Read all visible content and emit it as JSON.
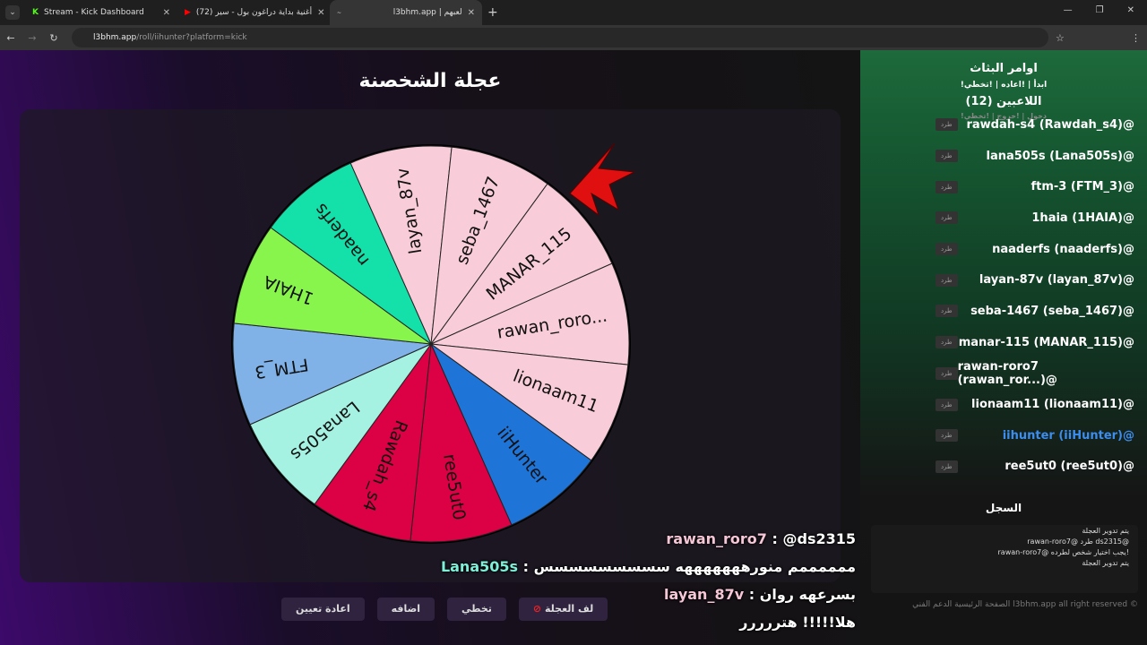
{
  "browser": {
    "tabs": [
      {
        "title": "Stream - Kick Dashboard",
        "icon": "kick-icon"
      },
      {
        "title": "(72) أغنية بداية دراغون بول - سير",
        "icon": "youtube-icon"
      },
      {
        "title": "l3bhm.app | لعبهم",
        "icon": "site-icon"
      }
    ],
    "url_host": "l3bhm.app",
    "url_path": "/roll/iihunter?platform=kick"
  },
  "page": {
    "title": "عجلة الشخصنة",
    "buttons": {
      "spin": "لف العجلة",
      "skip": "تخطي",
      "add": "اضافه",
      "reset": "اعادة تعيين"
    }
  },
  "wheel": {
    "segments": [
      {
        "label": "layan_87v",
        "color": "#f8cdd9"
      },
      {
        "label": "seba_1467",
        "color": "#f8cdd9"
      },
      {
        "label": "MANAR_115",
        "color": "#f8cdd9"
      },
      {
        "label": "rawan_roro...",
        "color": "#f8cdd9"
      },
      {
        "label": "lionaam11",
        "color": "#f8cdd9"
      },
      {
        "label": "iiHunter",
        "color": "#1f74d8"
      },
      {
        "label": "ree5ut0",
        "color": "#dc0044"
      },
      {
        "label": "Rawdah_s4",
        "color": "#dc0044"
      },
      {
        "label": "Lana505s",
        "color": "#a6f2e2"
      },
      {
        "label": "FTM_3",
        "color": "#80b2e8"
      },
      {
        "label": "1HAIA",
        "color": "#88f54c"
      },
      {
        "label": "naaderfs",
        "color": "#14e0aa"
      }
    ]
  },
  "sidebar": {
    "commands_title": "اوامر البثاث",
    "commands": "!ابدأ | !اعاده | !تخطي",
    "players_title": "اللاعبين (12)",
    "player_cmds": "!دخول | !خروج | !تخطي",
    "kick_label": "طرد",
    "players": [
      {
        "name": "rawdah-s4 (Rawdah_s4)@"
      },
      {
        "name": "lana505s (Lana505s)@"
      },
      {
        "name": "ftm-3 (FTM_3)@"
      },
      {
        "name": "1haia (1HAIA)@"
      },
      {
        "name": "naaderfs (naaderfs)@"
      },
      {
        "name": "layan-87v (layan_87v)@"
      },
      {
        "name": "seba-1467 (seba_1467)@"
      },
      {
        "name": "manar-115 (MANAR_115)@"
      },
      {
        "name": "rawan-roro7 (rawan_ror...)@"
      },
      {
        "name": "lionaam11 (lionaam11)@"
      },
      {
        "name": "iihunter (iiHunter)@",
        "highlight": true
      },
      {
        "name": "ree5ut0 (ree5ut0)@"
      }
    ],
    "log_title": "السجل",
    "log": [
      "يتم تدوير العجلة",
      "rawan-roro7@ طرد ds2315@",
      "rawan-roro7@ يجب اختيار شخص لطرده!",
      "يتم تدوير العجلة"
    ],
    "footer": "الصفحة الرئيسية   الدعم الفني   l3bhm.app all right reserved ©"
  },
  "chat": [
    {
      "user": "rawan_roro7",
      "msg": "@ds2315",
      "color": "#f5c6d6"
    },
    {
      "user": "Lana505s",
      "msg": "ممممممم منورهههههههه سسسسسسسسس",
      "color": "#7ef0d8"
    },
    {
      "user": "layan_87v",
      "msg": "بسرعهه روان",
      "color": "#f5c6d6"
    },
    {
      "user": "",
      "msg": "هلا!!!!! هتررررر",
      "color": "#ffffff"
    }
  ]
}
